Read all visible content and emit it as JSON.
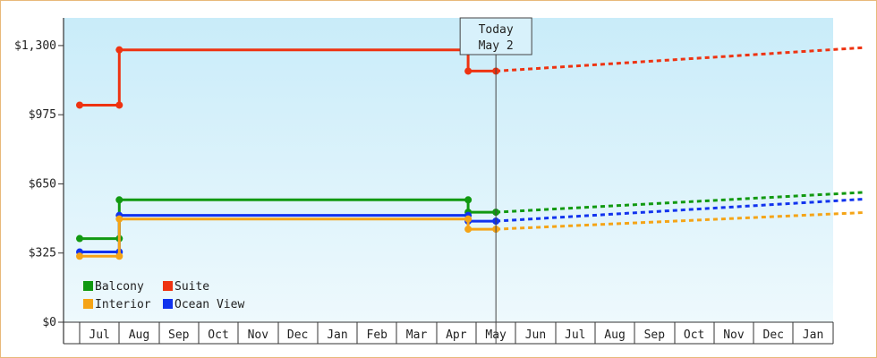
{
  "chart_data": {
    "type": "line",
    "title": "",
    "xlabel": "",
    "ylabel": "",
    "months": [
      "Jul",
      "Aug",
      "Sep",
      "Oct",
      "Nov",
      "Dec",
      "Jan",
      "Feb",
      "Mar",
      "Apr",
      "May",
      "Jun",
      "Jul",
      "Aug",
      "Sep",
      "Oct",
      "Nov",
      "Dec",
      "Jan"
    ],
    "xlim": [
      -0.5,
      19.25
    ],
    "ylim": [
      0,
      1430
    ],
    "yticks": [
      0,
      325,
      650,
      975,
      1300
    ],
    "ytick_labels": [
      "$0",
      "$325",
      "$650",
      "$975",
      "$1,300"
    ],
    "today": {
      "line1": "Today",
      "line2": "May 2",
      "x": 10.0
    },
    "legend": {
      "placement": "bottom-left"
    },
    "series": [
      {
        "name": "Suite",
        "color": "#ee3311",
        "points": [
          [
            -0.5,
            1020
          ],
          [
            0.5,
            1020
          ],
          [
            0.5,
            1280
          ],
          [
            9.3,
            1280
          ],
          [
            9.3,
            1180
          ],
          [
            10.0,
            1180
          ]
        ],
        "markers": [
          [
            -0.5,
            1020
          ],
          [
            0.5,
            1020
          ],
          [
            0.5,
            1280
          ],
          [
            9.3,
            1280
          ],
          [
            9.3,
            1180
          ],
          [
            10.0,
            1180
          ]
        ],
        "forecast": [
          [
            10.0,
            1180
          ],
          [
            19.25,
            1290
          ]
        ]
      },
      {
        "name": "Balcony",
        "color": "#119911",
        "points": [
          [
            -0.5,
            393
          ],
          [
            0.5,
            393
          ],
          [
            0.5,
            575
          ],
          [
            9.3,
            575
          ],
          [
            9.3,
            517
          ],
          [
            10.0,
            517
          ]
        ],
        "markers": [
          [
            -0.5,
            393
          ],
          [
            0.5,
            393
          ],
          [
            0.5,
            575
          ],
          [
            9.3,
            575
          ],
          [
            9.3,
            517
          ],
          [
            10.0,
            517
          ]
        ],
        "forecast": [
          [
            10.0,
            517
          ],
          [
            19.25,
            610
          ]
        ]
      },
      {
        "name": "Ocean View",
        "color": "#1133ee",
        "points": [
          [
            -0.5,
            330
          ],
          [
            0.5,
            330
          ],
          [
            0.5,
            502
          ],
          [
            9.3,
            502
          ],
          [
            9.3,
            475
          ],
          [
            10.0,
            475
          ]
        ],
        "markers": [
          [
            -0.5,
            330
          ],
          [
            0.5,
            330
          ],
          [
            0.5,
            502
          ],
          [
            9.3,
            502
          ],
          [
            9.3,
            475
          ],
          [
            10.0,
            475
          ]
        ],
        "forecast": [
          [
            10.0,
            475
          ],
          [
            19.25,
            578
          ]
        ]
      },
      {
        "name": "Interior",
        "color": "#f5a416",
        "points": [
          [
            -0.5,
            310
          ],
          [
            0.5,
            310
          ],
          [
            0.5,
            485
          ],
          [
            9.3,
            485
          ],
          [
            9.3,
            437
          ],
          [
            10.0,
            437
          ]
        ],
        "markers": [
          [
            -0.5,
            310
          ],
          [
            0.5,
            310
          ],
          [
            0.5,
            485
          ],
          [
            9.3,
            485
          ],
          [
            9.3,
            437
          ],
          [
            10.0,
            437
          ]
        ],
        "forecast": [
          [
            10.0,
            437
          ],
          [
            19.25,
            515
          ]
        ]
      }
    ],
    "legend_order": [
      "Balcony",
      "Suite",
      "Interior",
      "Ocean View"
    ]
  }
}
